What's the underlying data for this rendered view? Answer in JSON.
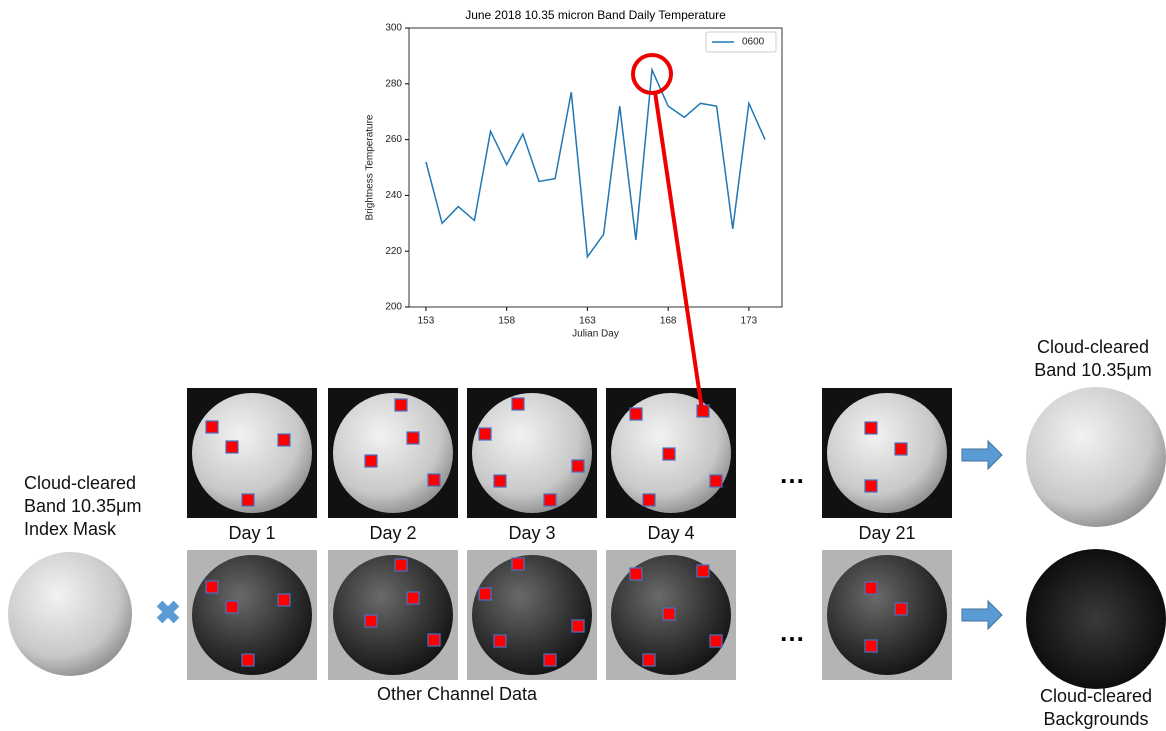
{
  "chart_data": {
    "type": "line",
    "title": "June 2018 10.35 micron Band Daily Temperature",
    "x_label": "Julian Day",
    "y_label": "Brightness Temperature",
    "x": [
      153,
      154,
      155,
      156,
      157,
      158,
      159,
      160,
      161,
      162,
      163,
      164,
      165,
      166,
      167,
      168,
      169,
      170,
      171,
      172,
      173,
      174
    ],
    "series": [
      {
        "name": "0600",
        "color": "#1f77b4",
        "values": [
          252,
          230,
          236,
          231,
          263,
          251,
          262,
          245,
          246,
          277,
          218,
          226,
          272,
          224,
          285,
          272,
          268,
          273,
          272,
          228,
          273,
          260
        ]
      }
    ],
    "xlim": [
      151.95,
      175.05
    ],
    "xticks": [
      153,
      158,
      163,
      168,
      173
    ],
    "ylim": [
      200,
      300
    ],
    "yticks": [
      200,
      220,
      240,
      260,
      280,
      300
    ],
    "legend": "upper right"
  },
  "mask_label": [
    "Cloud-cleared",
    "Band 10.35μm",
    "Index Mask"
  ],
  "days": [
    "Day 1",
    "Day 2",
    "Day 3",
    "Day 4",
    "Day 21"
  ],
  "ellipsis": [
    "…",
    "…"
  ],
  "other_channel_label": "Other Channel Data",
  "result_top_label": [
    "Cloud-cleared",
    "Band 10.35μm"
  ],
  "result_bottom_label": [
    "Cloud-cleared",
    "Backgrounds"
  ]
}
